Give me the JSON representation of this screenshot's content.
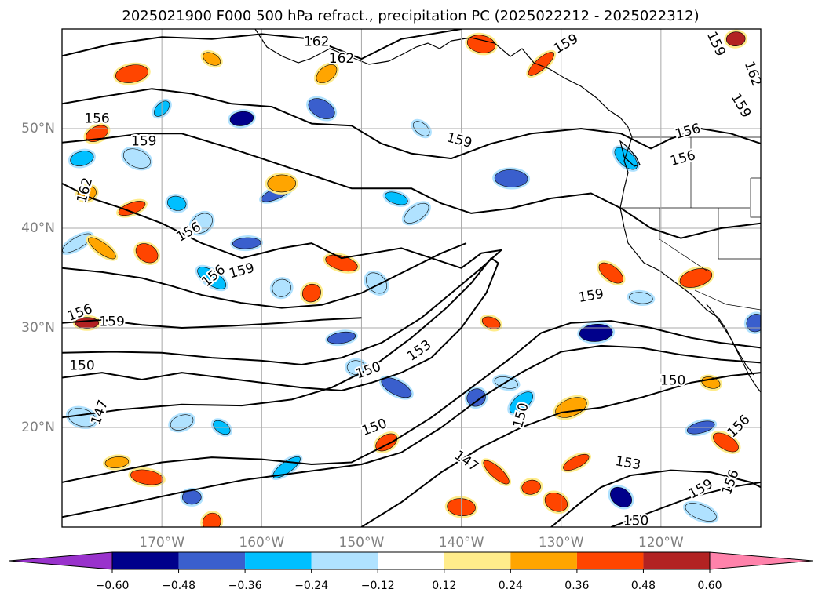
{
  "chart_data": {
    "type": "heatmap",
    "title": "2025021900 F000 500 hPa refract., precipitation PC (2025022212 - 2025022312)",
    "lon_range": [
      -180,
      -110
    ],
    "lat_range": [
      10,
      60
    ],
    "grid": true,
    "lon_ticks": [
      -170,
      -160,
      -150,
      -140,
      -130,
      -120
    ],
    "lon_tick_labels": [
      "170°W",
      "160°W",
      "150°W",
      "140°W",
      "130°W",
      "120°W"
    ],
    "lat_ticks": [
      20,
      30,
      40,
      50
    ],
    "lat_tick_labels": [
      "20°N",
      "30°N",
      "40°N",
      "50°N"
    ],
    "colorbar": {
      "orientation": "horizontal",
      "extend": "both",
      "levels": [
        -0.6,
        -0.48,
        -0.36,
        -0.24,
        -0.12,
        0.12,
        0.24,
        0.36,
        0.48,
        0.6
      ],
      "tick_labels": [
        "−0.60",
        "−0.48",
        "−0.36",
        "−0.24",
        "−0.12",
        "0.12",
        "0.24",
        "0.36",
        "0.48",
        "0.60"
      ],
      "colors": [
        "#9932CC",
        "#00008B",
        "#3A5FCD",
        "#00BFFF",
        "#B0E2FF",
        "#FFFFFF",
        "#FFEC8B",
        "#FFA500",
        "#FF4500",
        "#B22222",
        "#FF82AB"
      ]
    },
    "contour_labels": [
      {
        "text": "162",
        "lon": -154.5,
        "lat": 58.7,
        "rot": 0
      },
      {
        "text": "162",
        "lon": -152.0,
        "lat": 57.0,
        "rot": 0
      },
      {
        "text": "159",
        "lon": -129.5,
        "lat": 58.5,
        "rot": -30
      },
      {
        "text": "159",
        "lon": -114.5,
        "lat": 58.5,
        "rot": 65
      },
      {
        "text": "162",
        "lon": -110.8,
        "lat": 55.5,
        "rot": 70
      },
      {
        "text": "159",
        "lon": -112.0,
        "lat": 52.3,
        "rot": 60
      },
      {
        "text": "156",
        "lon": -176.5,
        "lat": 51.0,
        "rot": 0
      },
      {
        "text": "159",
        "lon": -171.8,
        "lat": 48.7,
        "rot": 0
      },
      {
        "text": "159",
        "lon": -140.2,
        "lat": 48.8,
        "rot": 15
      },
      {
        "text": "156",
        "lon": -117.3,
        "lat": 49.7,
        "rot": -15
      },
      {
        "text": "156",
        "lon": -117.8,
        "lat": 47.0,
        "rot": -15
      },
      {
        "text": "162",
        "lon": -177.7,
        "lat": 43.8,
        "rot": -75
      },
      {
        "text": "156",
        "lon": -167.3,
        "lat": 39.6,
        "rot": -30
      },
      {
        "text": "159",
        "lon": -162.0,
        "lat": 35.7,
        "rot": -15
      },
      {
        "text": "156",
        "lon": -164.8,
        "lat": 35.2,
        "rot": -40
      },
      {
        "text": "156",
        "lon": -178.2,
        "lat": 31.5,
        "rot": -20
      },
      {
        "text": "159",
        "lon": -175.0,
        "lat": 30.6,
        "rot": 0
      },
      {
        "text": "159",
        "lon": -127.0,
        "lat": 33.2,
        "rot": -10
      },
      {
        "text": "153",
        "lon": -144.2,
        "lat": 27.7,
        "rot": -35
      },
      {
        "text": "150",
        "lon": -178.0,
        "lat": 26.2,
        "rot": 0
      },
      {
        "text": "150",
        "lon": -149.3,
        "lat": 25.7,
        "rot": -20
      },
      {
        "text": "150",
        "lon": -118.8,
        "lat": 24.7,
        "rot": 0
      },
      {
        "text": "147",
        "lon": -176.2,
        "lat": 21.5,
        "rot": -70
      },
      {
        "text": "150",
        "lon": -148.7,
        "lat": 20.0,
        "rot": -20
      },
      {
        "text": "150",
        "lon": -134.0,
        "lat": 21.2,
        "rot": -75
      },
      {
        "text": "156",
        "lon": -112.2,
        "lat": 20.1,
        "rot": -45
      },
      {
        "text": "147",
        "lon": -139.5,
        "lat": 16.6,
        "rot": 35
      },
      {
        "text": "153",
        "lon": -123.3,
        "lat": 16.4,
        "rot": 10
      },
      {
        "text": "159",
        "lon": -116.0,
        "lat": 13.8,
        "rot": -30
      },
      {
        "text": "156",
        "lon": -113.0,
        "lat": 14.5,
        "rot": -70
      },
      {
        "text": "150",
        "lon": -122.5,
        "lat": 10.6,
        "rot": 0
      }
    ],
    "precip_cells": [
      {
        "lon": -170.0,
        "lat": 52.0,
        "v": -0.3
      },
      {
        "lon": -162.0,
        "lat": 51.0,
        "v": -0.5
      },
      {
        "lon": -154.0,
        "lat": 52.0,
        "v": -0.4
      },
      {
        "lon": -158.5,
        "lat": 43.5,
        "v": -0.4
      },
      {
        "lon": -168.5,
        "lat": 42.5,
        "v": -0.3
      },
      {
        "lon": -166.0,
        "lat": 40.5,
        "v": -0.24
      },
      {
        "lon": -161.5,
        "lat": 38.5,
        "v": -0.4
      },
      {
        "lon": -165.0,
        "lat": 35.0,
        "v": -0.3
      },
      {
        "lon": -158.0,
        "lat": 34.0,
        "v": -0.24
      },
      {
        "lon": -146.5,
        "lat": 43.0,
        "v": -0.3
      },
      {
        "lon": -144.5,
        "lat": 41.5,
        "v": -0.24
      },
      {
        "lon": -135.0,
        "lat": 45.0,
        "v": -0.4
      },
      {
        "lon": -144.0,
        "lat": 50.0,
        "v": -0.24
      },
      {
        "lon": -178.0,
        "lat": 47.0,
        "v": -0.3
      },
      {
        "lon": -172.5,
        "lat": 47.0,
        "v": -0.24
      },
      {
        "lon": -178.5,
        "lat": 38.5,
        "v": -0.24
      },
      {
        "lon": -150.5,
        "lat": 26.0,
        "v": -0.24
      },
      {
        "lon": -148.5,
        "lat": 34.5,
        "v": -0.24
      },
      {
        "lon": -152.0,
        "lat": 29.0,
        "v": -0.4
      },
      {
        "lon": -146.5,
        "lat": 24.0,
        "v": -0.4
      },
      {
        "lon": -138.5,
        "lat": 23.0,
        "v": -0.4
      },
      {
        "lon": -135.5,
        "lat": 24.5,
        "v": -0.24
      },
      {
        "lon": -134.0,
        "lat": 22.5,
        "v": -0.3
      },
      {
        "lon": -126.5,
        "lat": 29.5,
        "v": -0.55
      },
      {
        "lon": -164.0,
        "lat": 20.0,
        "v": -0.3
      },
      {
        "lon": -168.0,
        "lat": 20.5,
        "v": -0.24
      },
      {
        "lon": -178.0,
        "lat": 21.0,
        "v": -0.24
      },
      {
        "lon": -157.5,
        "lat": 16.0,
        "v": -0.3
      },
      {
        "lon": -167.0,
        "lat": 13.0,
        "v": -0.4
      },
      {
        "lon": -124.0,
        "lat": 13.0,
        "v": -0.5
      },
      {
        "lon": -116.0,
        "lat": 20.0,
        "v": -0.4
      },
      {
        "lon": -116.0,
        "lat": 11.5,
        "v": -0.24
      },
      {
        "lon": -110.5,
        "lat": 30.5,
        "v": -0.4
      },
      {
        "lon": -122.0,
        "lat": 33.0,
        "v": -0.24
      },
      {
        "lon": -123.5,
        "lat": 47.0,
        "v": -0.3
      },
      {
        "lon": -173.0,
        "lat": 55.5,
        "v": 0.36
      },
      {
        "lon": -165.0,
        "lat": 57.0,
        "v": 0.24
      },
      {
        "lon": -176.5,
        "lat": 49.5,
        "v": 0.4
      },
      {
        "lon": -138.0,
        "lat": 58.5,
        "v": 0.4
      },
      {
        "lon": -132.0,
        "lat": 56.5,
        "v": 0.4
      },
      {
        "lon": -112.5,
        "lat": 59.0,
        "v": 0.48
      },
      {
        "lon": -171.5,
        "lat": 37.5,
        "v": 0.4
      },
      {
        "lon": -173.0,
        "lat": 42.0,
        "v": 0.36
      },
      {
        "lon": -152.0,
        "lat": 36.5,
        "v": 0.36
      },
      {
        "lon": -155.0,
        "lat": 33.5,
        "v": 0.36
      },
      {
        "lon": -177.5,
        "lat": 30.5,
        "v": 0.48
      },
      {
        "lon": -125.0,
        "lat": 35.5,
        "v": 0.4
      },
      {
        "lon": -116.5,
        "lat": 35.0,
        "v": 0.4
      },
      {
        "lon": -137.0,
        "lat": 30.5,
        "v": 0.36
      },
      {
        "lon": -147.5,
        "lat": 18.5,
        "v": 0.4
      },
      {
        "lon": -140.0,
        "lat": 12.0,
        "v": 0.4
      },
      {
        "lon": -136.5,
        "lat": 15.5,
        "v": 0.36
      },
      {
        "lon": -133.0,
        "lat": 14.0,
        "v": 0.36
      },
      {
        "lon": -130.5,
        "lat": 12.5,
        "v": 0.4
      },
      {
        "lon": -128.5,
        "lat": 16.5,
        "v": 0.36
      },
      {
        "lon": -171.5,
        "lat": 15.0,
        "v": 0.36
      },
      {
        "lon": -165.0,
        "lat": 10.5,
        "v": 0.36
      },
      {
        "lon": -174.5,
        "lat": 16.5,
        "v": 0.3
      },
      {
        "lon": -113.5,
        "lat": 18.5,
        "v": 0.36
      },
      {
        "lon": -129.0,
        "lat": 22.0,
        "v": 0.3
      },
      {
        "lon": -115.0,
        "lat": 24.5,
        "v": 0.24
      },
      {
        "lon": -153.5,
        "lat": 55.5,
        "v": 0.24
      },
      {
        "lon": -158.0,
        "lat": 44.5,
        "v": 0.3
      },
      {
        "lon": -176.0,
        "lat": 38.0,
        "v": 0.3
      },
      {
        "lon": -177.5,
        "lat": 43.5,
        "v": 0.3
      }
    ],
    "contours": [
      [
        [
          -180,
          57.3
        ],
        [
          -175,
          58.5
        ],
        [
          -170,
          59.2
        ],
        [
          -165,
          59
        ],
        [
          -160,
          59.5
        ],
        [
          -155,
          59
        ],
        [
          -150,
          57
        ],
        [
          -146,
          59
        ],
        [
          -140,
          60
        ]
      ],
      [
        [
          -180,
          52.5
        ],
        [
          -176,
          53.2
        ],
        [
          -171,
          54
        ],
        [
          -167,
          53.5
        ],
        [
          -163,
          52.5
        ],
        [
          -159,
          52.2
        ],
        [
          -155,
          50.5
        ],
        [
          -151,
          50.3
        ],
        [
          -148,
          48.5
        ],
        [
          -145,
          47.5
        ],
        [
          -141,
          47
        ],
        [
          -137,
          48.5
        ],
        [
          -133,
          49.5
        ],
        [
          -128,
          50
        ],
        [
          -124,
          49.5
        ],
        [
          -121,
          48
        ],
        [
          -119,
          49
        ],
        [
          -116,
          50
        ],
        [
          -113,
          49.5
        ],
        [
          -110,
          48.5
        ]
      ],
      [
        [
          -180,
          48.6
        ],
        [
          -176,
          49
        ],
        [
          -172,
          49.5
        ],
        [
          -168,
          49.5
        ],
        [
          -163,
          48
        ],
        [
          -160,
          47
        ],
        [
          -157,
          46
        ],
        [
          -154,
          45
        ],
        [
          -151,
          44
        ],
        [
          -148,
          44
        ],
        [
          -145,
          44
        ],
        [
          -142,
          42.5
        ],
        [
          -139,
          41.5
        ],
        [
          -135,
          42
        ],
        [
          -131,
          43
        ],
        [
          -127,
          43.5
        ],
        [
          -124,
          42
        ],
        [
          -121,
          40
        ],
        [
          -118,
          39
        ],
        [
          -114,
          40
        ],
        [
          -110,
          40.5
        ]
      ],
      [
        [
          -180,
          44.5
        ],
        [
          -177,
          43
        ],
        [
          -174,
          42
        ],
        [
          -170,
          40.5
        ],
        [
          -166,
          38.5
        ],
        [
          -162,
          37
        ],
        [
          -158,
          38
        ],
        [
          -155,
          38.5
        ],
        [
          -152,
          37
        ],
        [
          -149,
          37.5
        ],
        [
          -146,
          38
        ],
        [
          -143,
          37
        ],
        [
          -140,
          36
        ],
        [
          -138,
          37.5
        ],
        [
          -136,
          37.8
        ],
        [
          -138,
          36
        ],
        [
          -141,
          33.5
        ],
        [
          -144,
          31
        ],
        [
          -148,
          28.5
        ],
        [
          -152,
          27
        ],
        [
          -156,
          26.3
        ],
        [
          -160,
          26.7
        ],
        [
          -165,
          27
        ],
        [
          -170,
          27.5
        ],
        [
          -175,
          27.6
        ],
        [
          -180,
          27.5
        ]
      ],
      [
        [
          -180,
          25
        ],
        [
          -176,
          25.5
        ],
        [
          -172,
          24.8
        ],
        [
          -168,
          25.5
        ],
        [
          -164,
          25
        ],
        [
          -160,
          24.5
        ],
        [
          -156,
          24
        ],
        [
          -152,
          23.7
        ],
        [
          -149,
          24.5
        ],
        [
          -146,
          25.5
        ],
        [
          -143,
          27
        ],
        [
          -140,
          30
        ],
        [
          -137.5,
          33.5
        ],
        [
          -136.3,
          36.5
        ],
        [
          -137,
          37
        ],
        [
          -139,
          34.5
        ],
        [
          -141.5,
          32
        ],
        [
          -145,
          29
        ],
        [
          -149,
          26
        ],
        [
          -153,
          24
        ],
        [
          -157,
          22.8
        ],
        [
          -162,
          22.2
        ],
        [
          -168,
          22.3
        ],
        [
          -174,
          21.8
        ],
        [
          -180,
          21
        ]
      ],
      [
        [
          -180,
          14.5
        ],
        [
          -175,
          15.5
        ],
        [
          -170,
          16.5
        ],
        [
          -165,
          17
        ],
        [
          -160,
          16.8
        ],
        [
          -155,
          16.3
        ],
        [
          -151,
          16.5
        ],
        [
          -147,
          18.5
        ],
        [
          -143,
          21
        ],
        [
          -139,
          24
        ],
        [
          -135,
          27
        ],
        [
          -132,
          29.5
        ],
        [
          -129,
          30.5
        ],
        [
          -125,
          30.7
        ],
        [
          -121,
          30
        ],
        [
          -117,
          29
        ],
        [
          -114,
          28.5
        ],
        [
          -110,
          28
        ]
      ],
      [
        [
          -180,
          11
        ],
        [
          -175,
          12
        ],
        [
          -168,
          13.5
        ],
        [
          -162,
          14.7
        ],
        [
          -156,
          15.5
        ],
        [
          -150,
          16.3
        ],
        [
          -146,
          17.5
        ],
        [
          -142,
          20
        ],
        [
          -138,
          23
        ],
        [
          -134,
          25.5
        ],
        [
          -130,
          27.6
        ],
        [
          -126,
          28.2
        ],
        [
          -122,
          28
        ],
        [
          -118,
          27.3
        ],
        [
          -114,
          26.8
        ],
        [
          -110,
          26.5
        ]
      ],
      [
        [
          -150,
          10
        ],
        [
          -146,
          12.5
        ],
        [
          -142,
          15.5
        ],
        [
          -138,
          18
        ],
        [
          -134,
          20
        ],
        [
          -130,
          21.5
        ],
        [
          -126,
          22
        ],
        [
          -122,
          23
        ],
        [
          -117,
          24.5
        ],
        [
          -113,
          25.2
        ],
        [
          -110,
          25.5
        ]
      ],
      [
        [
          -131,
          10
        ],
        [
          -128,
          12.5
        ],
        [
          -126,
          14
        ],
        [
          -123,
          15.2
        ],
        [
          -119,
          15.7
        ],
        [
          -115,
          15.5
        ],
        [
          -111,
          14.5
        ],
        [
          -110,
          14
        ]
      ],
      [
        [
          -125,
          10
        ],
        [
          -121,
          11.5
        ],
        [
          -117,
          13
        ],
        [
          -113,
          14
        ],
        [
          -110,
          14.5
        ]
      ],
      [
        [
          -180,
          36
        ],
        [
          -176,
          35.6
        ],
        [
          -172,
          35
        ],
        [
          -169,
          34.2
        ],
        [
          -166,
          33.3
        ],
        [
          -162,
          32.5
        ],
        [
          -158,
          32
        ],
        [
          -154,
          32.3
        ],
        [
          -150,
          33.5
        ],
        [
          -146,
          35.5
        ],
        [
          -142,
          37.5
        ],
        [
          -139.5,
          38.5
        ]
      ],
      [
        [
          -180,
          30.5
        ],
        [
          -176,
          30.8
        ],
        [
          -172,
          30.3
        ],
        [
          -168,
          30
        ],
        [
          -163,
          30.2
        ],
        [
          -158,
          30.5
        ],
        [
          -154,
          30.8
        ],
        [
          -150,
          31
        ]
      ]
    ]
  }
}
